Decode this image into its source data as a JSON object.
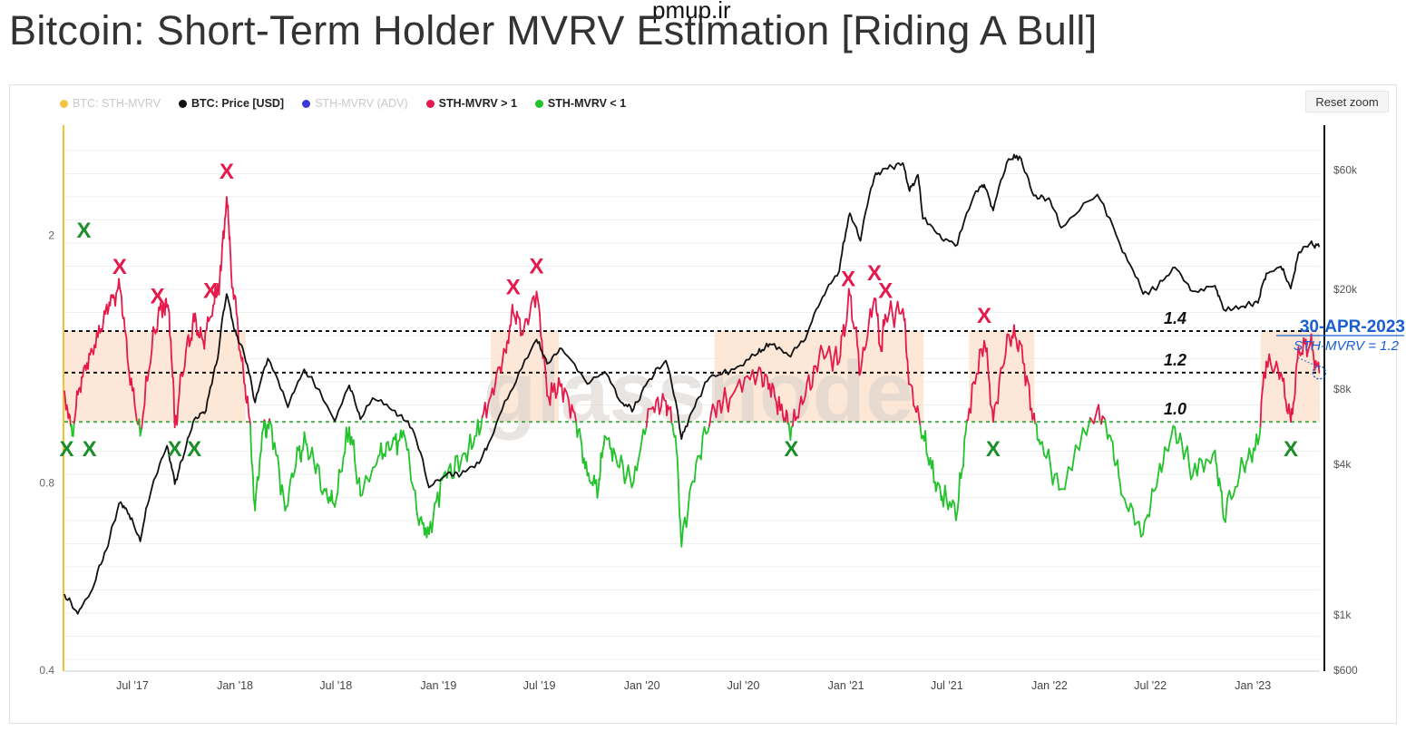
{
  "page": {
    "title": "Bitcoin: Short-Term Holder MVRV Estimation  [Riding A Bull]",
    "source_watermark": "pmup.ir",
    "chart_watermark": "glassnode",
    "reset_zoom": "Reset zoom"
  },
  "legend": [
    {
      "label": "BTC: STH-MVRV",
      "color": "#f5c542",
      "active": false
    },
    {
      "label": "BTC: Price [USD]",
      "color": "#111111",
      "active": true
    },
    {
      "label": "STH-MVRV (ADV)",
      "color": "#3a3ad6",
      "active": false
    },
    {
      "label": "STH-MVRV > 1",
      "color": "#e5194a",
      "active": true
    },
    {
      "label": "STH-MVRV < 1",
      "color": "#22c22b",
      "active": true
    }
  ],
  "chart_data": {
    "type": "line",
    "x_ticks": [
      "Jul '17",
      "Jan '18",
      "Jul '18",
      "Jan '19",
      "Jul '19",
      "Jan '20",
      "Jul '20",
      "Jan '21",
      "Jul '21",
      "Jan '22",
      "Jul '22",
      "Jan '23"
    ],
    "x_range": [
      "2017-03-01",
      "2023-05-01"
    ],
    "y_left": {
      "scale": "log",
      "ticks": [
        "2",
        "0.8",
        "0.4"
      ],
      "range": [
        0.4,
        3.0
      ]
    },
    "y_right": {
      "scale": "log",
      "ticks": [
        "$60k",
        "$20k",
        "$8k",
        "$4k",
        "$1k",
        "$600"
      ],
      "range": [
        600,
        90000
      ]
    },
    "reference_lines": [
      {
        "label": "1.4",
        "value": 1.4
      },
      {
        "label": "1.2",
        "value": 1.2
      },
      {
        "label": "1.0",
        "value": 1.0
      }
    ],
    "highlight_zones": [
      {
        "start": "2017-03-01",
        "end": "2018-01-20"
      },
      {
        "start": "2019-04-05",
        "end": "2019-08-05"
      },
      {
        "start": "2020-05-10",
        "end": "2021-05-20"
      },
      {
        "start": "2021-08-10",
        "end": "2021-12-05"
      },
      {
        "start": "2023-01-15",
        "end": "2023-05-01"
      }
    ],
    "series": [
      {
        "name": "BTC: Price [USD]",
        "color": "#111111",
        "points": [
          [
            "2017-03-01",
            1200
          ],
          [
            "2017-03-25",
            1000
          ],
          [
            "2017-04-20",
            1250
          ],
          [
            "2017-05-15",
            1800
          ],
          [
            "2017-06-10",
            2800
          ],
          [
            "2017-06-25",
            2500
          ],
          [
            "2017-07-15",
            1950
          ],
          [
            "2017-08-05",
            3200
          ],
          [
            "2017-09-01",
            4700
          ],
          [
            "2017-09-15",
            3300
          ],
          [
            "2017-10-01",
            4300
          ],
          [
            "2017-10-20",
            6000
          ],
          [
            "2017-11-10",
            6500
          ],
          [
            "2017-12-01",
            10500
          ],
          [
            "2017-12-17",
            19000
          ],
          [
            "2017-12-31",
            13500
          ],
          [
            "2018-01-15",
            11500
          ],
          [
            "2018-02-06",
            7000
          ],
          [
            "2018-03-01",
            10500
          ],
          [
            "2018-04-06",
            6700
          ],
          [
            "2018-05-05",
            9500
          ],
          [
            "2018-06-29",
            5900
          ],
          [
            "2018-07-25",
            8200
          ],
          [
            "2018-08-14",
            6000
          ],
          [
            "2018-09-05",
            7300
          ],
          [
            "2018-10-15",
            6500
          ],
          [
            "2018-11-15",
            5500
          ],
          [
            "2018-12-15",
            3200
          ],
          [
            "2019-01-15",
            3600
          ],
          [
            "2019-02-10",
            3600
          ],
          [
            "2019-03-15",
            4000
          ],
          [
            "2019-04-05",
            5000
          ],
          [
            "2019-05-15",
            8000
          ],
          [
            "2019-06-26",
            12500
          ],
          [
            "2019-07-15",
            10000
          ],
          [
            "2019-08-10",
            11500
          ],
          [
            "2019-09-25",
            8300
          ],
          [
            "2019-10-26",
            9300
          ],
          [
            "2019-11-25",
            7000
          ],
          [
            "2019-12-17",
            6600
          ],
          [
            "2020-01-15",
            8700
          ],
          [
            "2020-02-13",
            10300
          ],
          [
            "2020-03-12",
            5000
          ],
          [
            "2020-04-01",
            6500
          ],
          [
            "2020-05-01",
            8800
          ],
          [
            "2020-06-15",
            9500
          ],
          [
            "2020-07-27",
            11000
          ],
          [
            "2020-08-17",
            12000
          ],
          [
            "2020-09-20",
            10800
          ],
          [
            "2020-10-20",
            12500
          ],
          [
            "2020-11-20",
            18500
          ],
          [
            "2020-12-20",
            23500
          ],
          [
            "2021-01-08",
            40000
          ],
          [
            "2021-01-27",
            31000
          ],
          [
            "2021-02-21",
            56000
          ],
          [
            "2021-03-13",
            60500
          ],
          [
            "2021-04-13",
            63500
          ],
          [
            "2021-04-25",
            49000
          ],
          [
            "2021-05-10",
            57000
          ],
          [
            "2021-05-19",
            38000
          ],
          [
            "2021-06-22",
            31500
          ],
          [
            "2021-07-20",
            30000
          ],
          [
            "2021-08-22",
            49000
          ],
          [
            "2021-09-06",
            52000
          ],
          [
            "2021-09-22",
            41000
          ],
          [
            "2021-10-20",
            66000
          ],
          [
            "2021-11-08",
            67500
          ],
          [
            "2021-12-04",
            47000
          ],
          [
            "2021-12-31",
            46000
          ],
          [
            "2022-01-22",
            35000
          ],
          [
            "2022-03-28",
            47500
          ],
          [
            "2022-05-12",
            28000
          ],
          [
            "2022-06-18",
            19000
          ],
          [
            "2022-07-15",
            20500
          ],
          [
            "2022-08-14",
            24300
          ],
          [
            "2022-09-15",
            19500
          ],
          [
            "2022-10-25",
            20500
          ],
          [
            "2022-11-09",
            16500
          ],
          [
            "2022-12-15",
            17000
          ],
          [
            "2023-01-10",
            17500
          ],
          [
            "2023-01-25",
            23000
          ],
          [
            "2023-02-20",
            24500
          ],
          [
            "2023-03-10",
            20000
          ],
          [
            "2023-03-25",
            28000
          ],
          [
            "2023-04-14",
            30400
          ],
          [
            "2023-04-30",
            29300
          ]
        ]
      },
      {
        "name": "BTC: STH-MVRV",
        "color": "#e5194a",
        "color_below_1": "#22c22b",
        "points": [
          [
            "2017-03-01",
            1.12
          ],
          [
            "2017-03-15",
            0.95
          ],
          [
            "2017-04-01",
            1.18
          ],
          [
            "2017-04-20",
            1.3
          ],
          [
            "2017-05-10",
            1.45
          ],
          [
            "2017-05-25",
            1.6
          ],
          [
            "2017-06-10",
            1.62
          ],
          [
            "2017-06-25",
            1.2
          ],
          [
            "2017-07-15",
            0.95
          ],
          [
            "2017-08-10",
            1.4
          ],
          [
            "2017-08-25",
            1.55
          ],
          [
            "2017-09-05",
            1.5
          ],
          [
            "2017-09-15",
            0.98
          ],
          [
            "2017-10-05",
            1.3
          ],
          [
            "2017-10-20",
            1.45
          ],
          [
            "2017-11-05",
            1.35
          ],
          [
            "2017-11-25",
            1.55
          ],
          [
            "2017-12-07",
            1.75
          ],
          [
            "2017-12-17",
            2.3
          ],
          [
            "2017-12-25",
            1.75
          ],
          [
            "2018-01-10",
            1.3
          ],
          [
            "2018-01-25",
            1.05
          ],
          [
            "2018-02-06",
            0.72
          ],
          [
            "2018-02-20",
            0.97
          ],
          [
            "2018-03-05",
            1.0
          ],
          [
            "2018-04-01",
            0.72
          ],
          [
            "2018-04-25",
            0.9
          ],
          [
            "2018-05-10",
            0.92
          ],
          [
            "2018-06-10",
            0.78
          ],
          [
            "2018-06-29",
            0.73
          ],
          [
            "2018-07-25",
            0.98
          ],
          [
            "2018-08-14",
            0.76
          ],
          [
            "2018-09-15",
            0.88
          ],
          [
            "2018-10-10",
            0.92
          ],
          [
            "2018-11-01",
            0.95
          ],
          [
            "2018-11-25",
            0.7
          ],
          [
            "2018-12-15",
            0.66
          ],
          [
            "2019-01-10",
            0.82
          ],
          [
            "2019-02-10",
            0.86
          ],
          [
            "2019-03-10",
            0.95
          ],
          [
            "2019-04-05",
            1.1
          ],
          [
            "2019-05-01",
            1.3
          ],
          [
            "2019-05-15",
            1.5
          ],
          [
            "2019-06-01",
            1.38
          ],
          [
            "2019-06-26",
            1.62
          ],
          [
            "2019-07-15",
            1.1
          ],
          [
            "2019-08-10",
            1.15
          ],
          [
            "2019-09-05",
            1.0
          ],
          [
            "2019-09-25",
            0.82
          ],
          [
            "2019-10-15",
            0.78
          ],
          [
            "2019-10-26",
            0.95
          ],
          [
            "2019-11-15",
            0.88
          ],
          [
            "2019-12-17",
            0.8
          ],
          [
            "2020-01-15",
            1.05
          ],
          [
            "2020-02-13",
            1.08
          ],
          [
            "2020-03-01",
            0.95
          ],
          [
            "2020-03-12",
            0.63
          ],
          [
            "2020-04-10",
            0.88
          ],
          [
            "2020-05-10",
            1.05
          ],
          [
            "2020-06-10",
            1.1
          ],
          [
            "2020-07-27",
            1.2
          ],
          [
            "2020-08-17",
            1.15
          ],
          [
            "2020-09-10",
            1.02
          ],
          [
            "2020-09-25",
            0.98
          ],
          [
            "2020-10-20",
            1.1
          ],
          [
            "2020-11-20",
            1.3
          ],
          [
            "2020-12-20",
            1.25
          ],
          [
            "2021-01-08",
            1.6
          ],
          [
            "2021-01-27",
            1.2
          ],
          [
            "2021-02-21",
            1.58
          ],
          [
            "2021-03-05",
            1.3
          ],
          [
            "2021-03-13",
            1.48
          ],
          [
            "2021-04-13",
            1.52
          ],
          [
            "2021-04-25",
            1.15
          ],
          [
            "2021-05-19",
            0.95
          ],
          [
            "2021-06-10",
            0.8
          ],
          [
            "2021-06-22",
            0.76
          ],
          [
            "2021-07-20",
            0.72
          ],
          [
            "2021-08-10",
            1.05
          ],
          [
            "2021-09-06",
            1.35
          ],
          [
            "2021-09-22",
            1.0
          ],
          [
            "2021-10-20",
            1.38
          ],
          [
            "2021-11-08",
            1.35
          ],
          [
            "2021-11-30",
            1.05
          ],
          [
            "2021-12-15",
            0.92
          ],
          [
            "2022-01-22",
            0.78
          ],
          [
            "2022-03-28",
            1.05
          ],
          [
            "2022-04-20",
            0.95
          ],
          [
            "2022-05-12",
            0.76
          ],
          [
            "2022-06-18",
            0.66
          ],
          [
            "2022-07-15",
            0.82
          ],
          [
            "2022-08-14",
            0.98
          ],
          [
            "2022-09-15",
            0.82
          ],
          [
            "2022-10-25",
            0.9
          ],
          [
            "2022-11-09",
            0.7
          ],
          [
            "2022-12-15",
            0.85
          ],
          [
            "2023-01-10",
            0.92
          ],
          [
            "2023-01-25",
            1.25
          ],
          [
            "2023-02-20",
            1.2
          ],
          [
            "2023-03-10",
            1.0
          ],
          [
            "2023-03-25",
            1.3
          ],
          [
            "2023-04-14",
            1.34
          ],
          [
            "2023-04-30",
            1.2
          ]
        ]
      }
    ],
    "peak_markers": {
      "color": "#e5194a",
      "label": "X",
      "dates": [
        "2017-06-08",
        "2017-08-15",
        "2017-11-18",
        "2017-12-17",
        "2019-05-15",
        "2019-06-26",
        "2021-01-05",
        "2021-02-21",
        "2021-03-13",
        "2021-09-06"
      ]
    },
    "trough_markers": {
      "color": "#1a8f2a",
      "label": "X",
      "dates": [
        "2017-03-05",
        "2017-04-15",
        "2017-09-15",
        "2017-10-20",
        "2020-09-25",
        "2021-09-22",
        "2023-03-10"
      ]
    },
    "callout": {
      "date_label": "30-APR-2023",
      "value_label": "STH-MVRV = 1.2",
      "date": "2023-04-30",
      "value": 1.2,
      "color": "#1a5fd1"
    }
  }
}
